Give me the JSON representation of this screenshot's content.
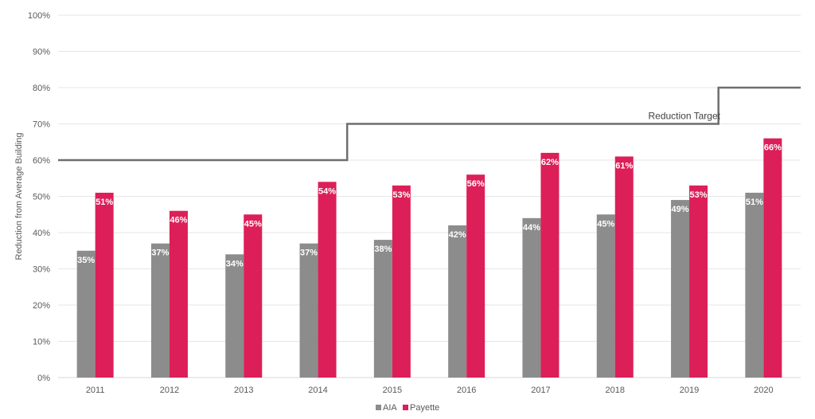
{
  "chart_data": {
    "type": "bar",
    "categories": [
      "2011",
      "2012",
      "2013",
      "2014",
      "2015",
      "2016",
      "2017",
      "2018",
      "2019",
      "2020"
    ],
    "series": [
      {
        "name": "AIA",
        "values": [
          35,
          37,
          34,
          37,
          38,
          42,
          44,
          45,
          49,
          51
        ],
        "color": "#8c8c8c"
      },
      {
        "name": "Payette",
        "values": [
          51,
          46,
          45,
          54,
          53,
          56,
          62,
          61,
          53,
          66
        ],
        "color": "#dc1f58"
      }
    ],
    "data_labels": {
      "AIA": [
        "35%",
        "37%",
        "34%",
        "37%",
        "38%",
        "42%",
        "44%",
        "45%",
        "49%",
        "51%"
      ],
      "Payette": [
        "51%",
        "46%",
        "45%",
        "54%",
        "53%",
        "56%",
        "62%",
        "61%",
        "53%",
        "66%"
      ]
    },
    "reduction_target": {
      "label": "Reduction Target",
      "values": [
        60,
        60,
        60,
        60,
        70,
        70,
        70,
        70,
        70,
        80
      ],
      "color": "#6e6e6e"
    },
    "ylabel": "Reduction from Average Building",
    "ylim": [
      0,
      100
    ],
    "yticks": [
      0,
      10,
      20,
      30,
      40,
      50,
      60,
      70,
      80,
      90,
      100
    ],
    "ytick_labels": [
      "0%",
      "10%",
      "20%",
      "30%",
      "40%",
      "50%",
      "60%",
      "70%",
      "80%",
      "90%",
      "100%"
    ],
    "grid": true,
    "legend": "bottom"
  }
}
